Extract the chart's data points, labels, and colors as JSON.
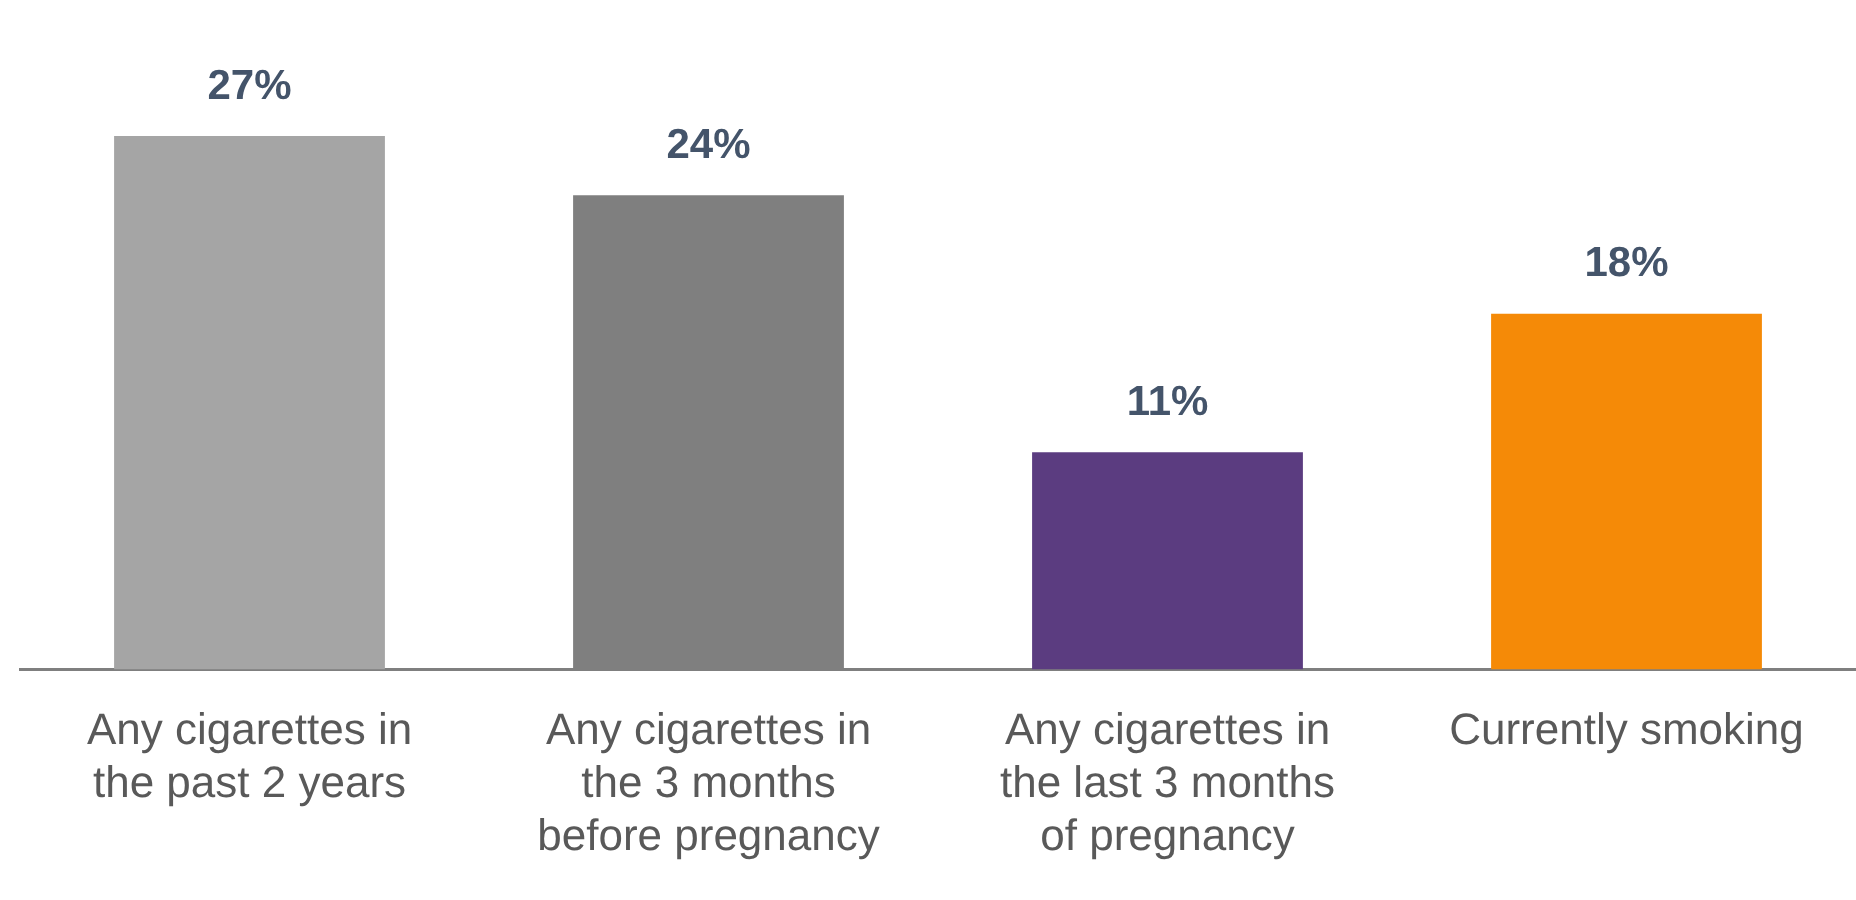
{
  "chart_data": {
    "type": "bar",
    "categories": [
      "Any cigarettes in the past 2 years",
      "Any cigarettes in the 3 months before pregnancy",
      "Any cigarettes in the last 3 months of pregnancy",
      "Currently smoking"
    ],
    "values": [
      27,
      24,
      11,
      18
    ],
    "colors": [
      "#a5a5a5",
      "#7f7f7f",
      "#5b3c80",
      "#f58a07"
    ],
    "value_labels": [
      "27%",
      "24%",
      "11%",
      "18%"
    ],
    "grid": false,
    "legend": false
  }
}
